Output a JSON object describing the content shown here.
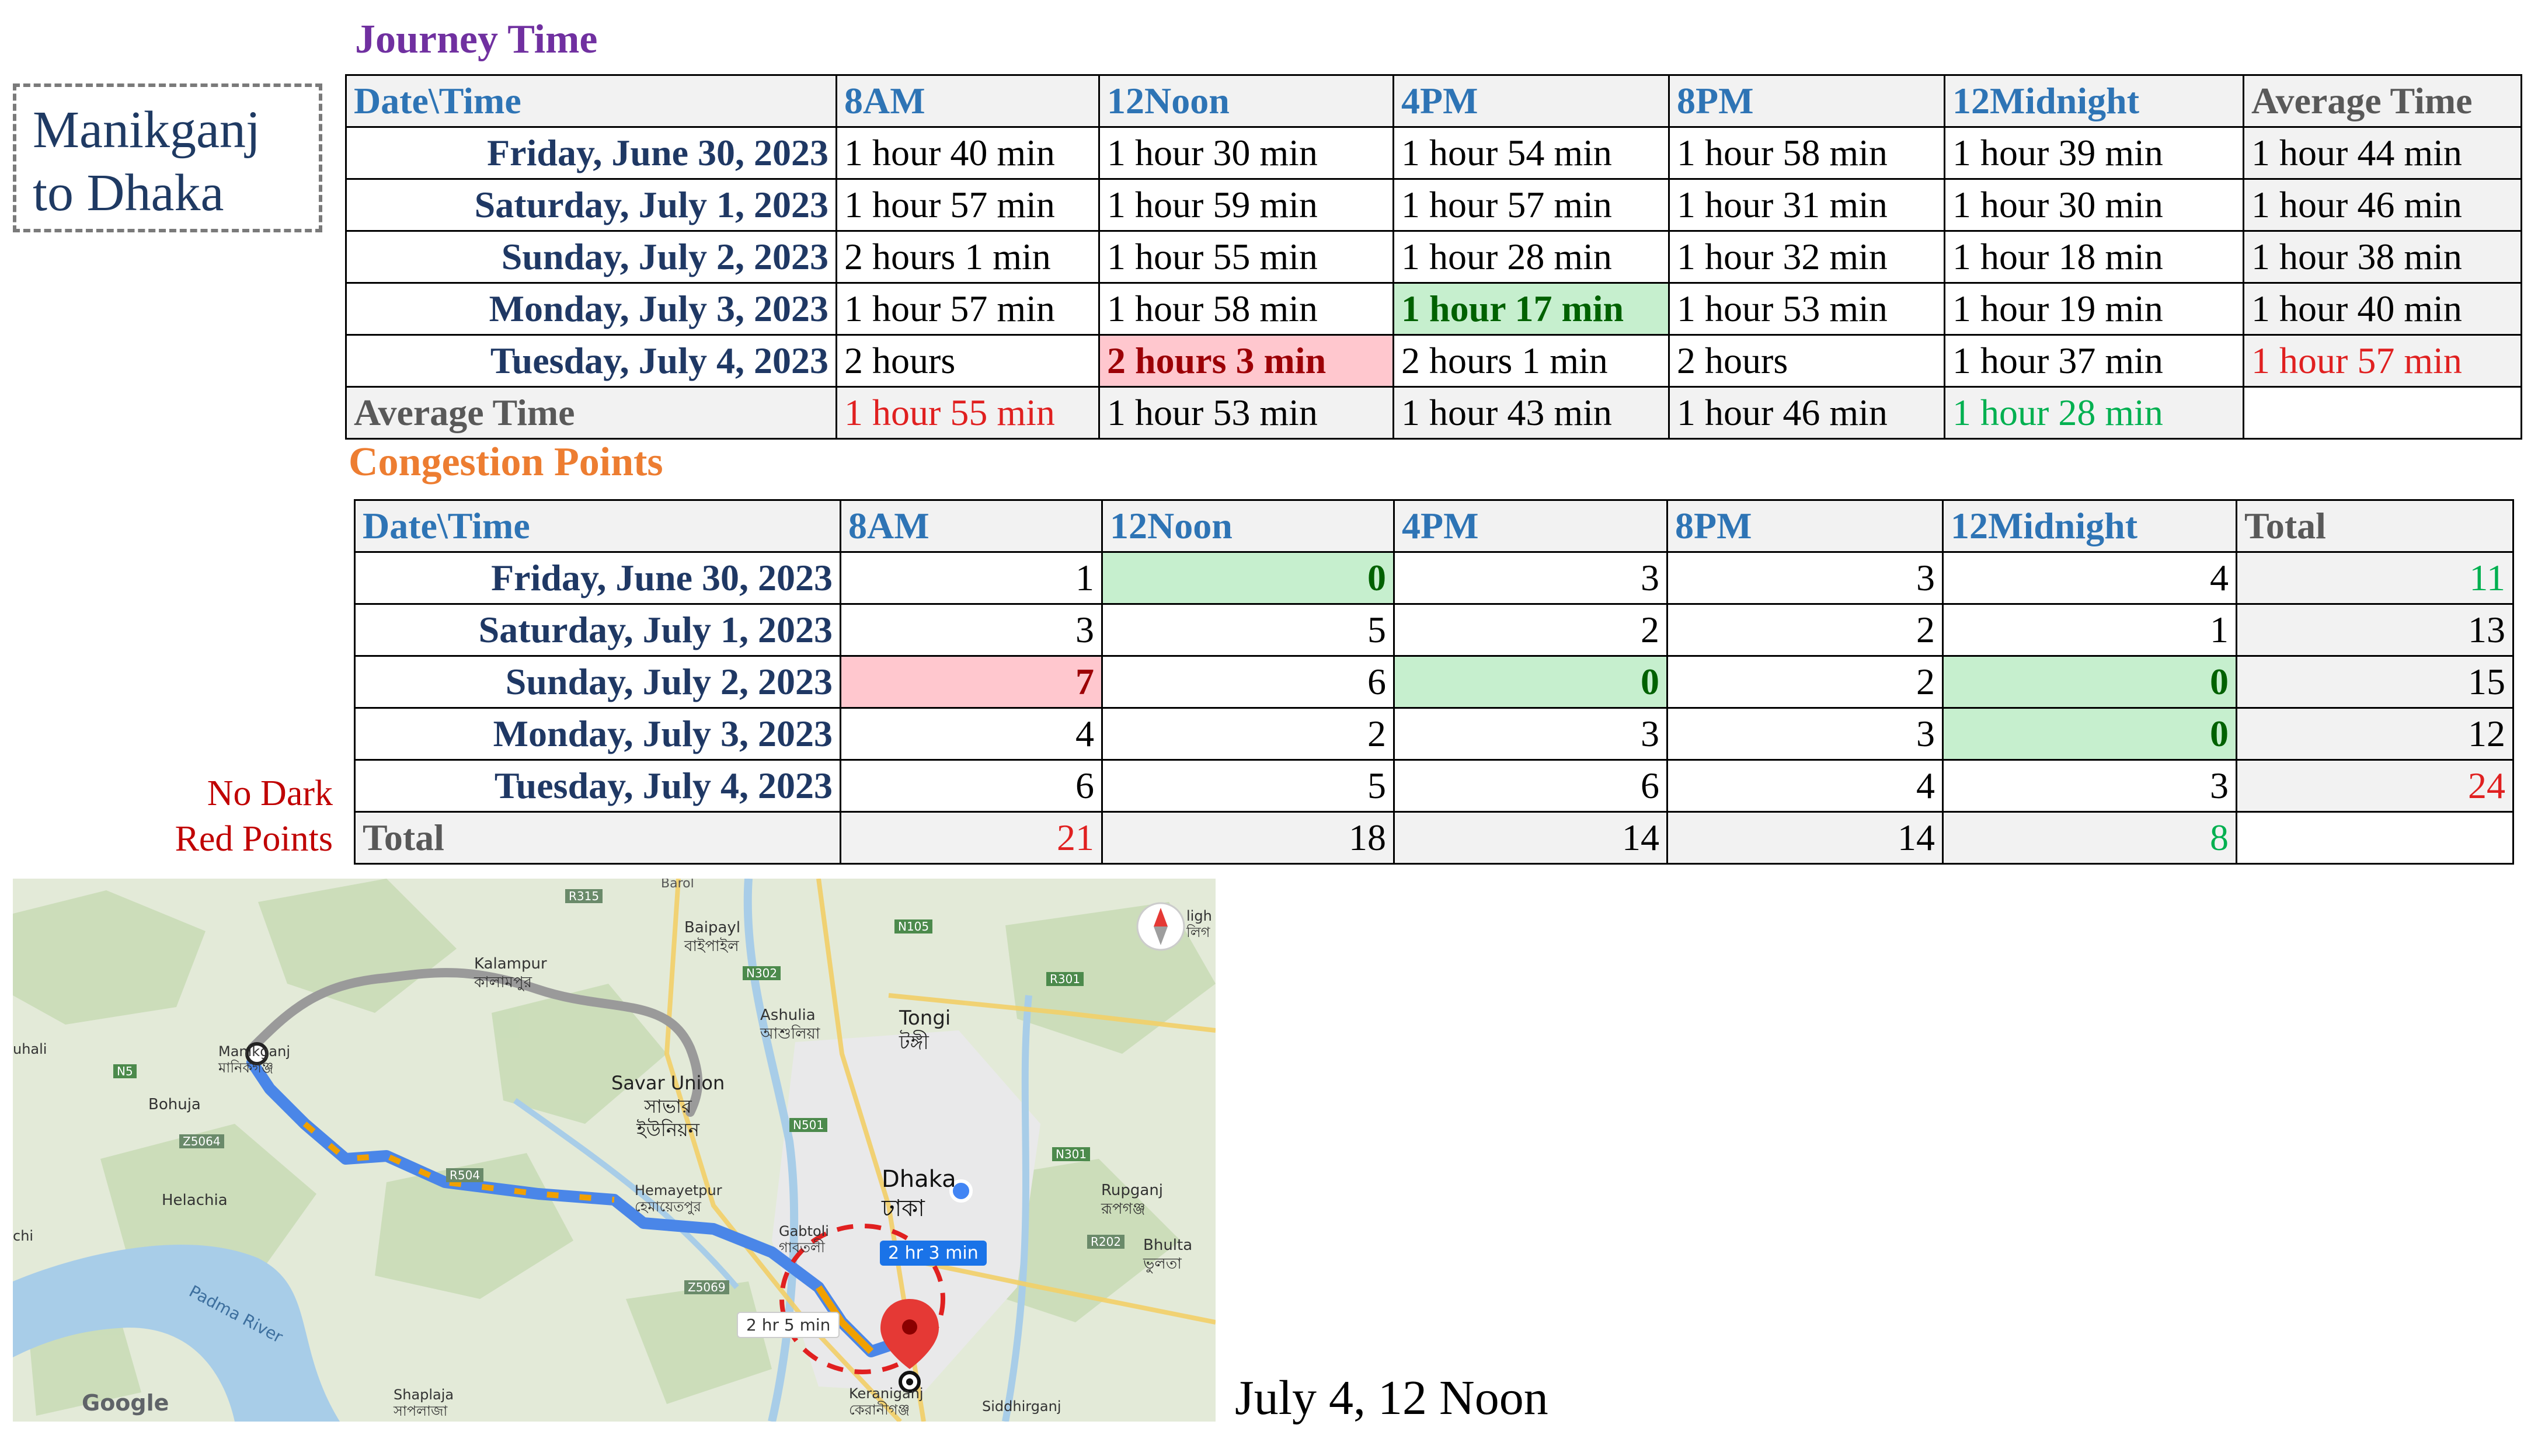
{
  "route_label": [
    "Manikganj",
    "to Dhaka"
  ],
  "journey": {
    "title": "Journey Time",
    "headers": [
      "Date\\Time",
      "8AM",
      "12Noon",
      "4PM",
      "8PM",
      "12Midnight",
      "Average Time"
    ],
    "rows": [
      {
        "date": "Friday, June 30, 2023",
        "cells": [
          "1 hour 40 min",
          "1 hour 30 min",
          "1 hour 54 min",
          "1 hour 58 min",
          "1 hour 39 min"
        ],
        "avg": "1 hour 44 min"
      },
      {
        "date": "Saturday, July 1, 2023",
        "cells": [
          "1 hour 57 min",
          "1 hour 59 min",
          "1 hour 57 min",
          "1 hour 31 min",
          "1 hour 30 min"
        ],
        "avg": "1 hour 46 min"
      },
      {
        "date": "Sunday, July 2, 2023",
        "cells": [
          "2 hours 1 min",
          "1 hour 55 min",
          "1 hour 28 min",
          "1 hour 32 min",
          "1 hour 18 min"
        ],
        "avg": "1 hour 38 min"
      },
      {
        "date": "Monday, July 3, 2023",
        "cells": [
          "1 hour 57 min",
          "1 hour 58 min",
          "1 hour 17 min",
          "1 hour 53 min",
          "1 hour 19 min"
        ],
        "avg": "1 hour 40 min"
      },
      {
        "date": "Tuesday, July 4, 2023",
        "cells": [
          "2 hours",
          "2 hours 3 min",
          "2 hours 1 min",
          "2 hours",
          "1 hour 37 min"
        ],
        "avg": "1 hour 57 min"
      }
    ],
    "average_label": "Average Time",
    "averages": [
      "1 hour 55 min",
      "1 hour 53 min",
      "1 hour 43 min",
      "1 hour 46 min",
      "1 hour 28 min"
    ]
  },
  "congestion": {
    "title": "Congestion Points",
    "headers": [
      "Date\\Time",
      "8AM",
      "12Noon",
      "4PM",
      "8PM",
      "12Midnight",
      "Total"
    ],
    "rows": [
      {
        "date": "Friday, June 30, 2023",
        "cells": [
          "1",
          "0",
          "3",
          "3",
          "4"
        ],
        "total": "11"
      },
      {
        "date": "Saturday, July 1, 2023",
        "cells": [
          "3",
          "5",
          "2",
          "2",
          "1"
        ],
        "total": "13"
      },
      {
        "date": "Sunday, July 2, 2023",
        "cells": [
          "7",
          "6",
          "0",
          "2",
          "0"
        ],
        "total": "15"
      },
      {
        "date": "Monday, July 3, 2023",
        "cells": [
          "4",
          "2",
          "3",
          "3",
          "0"
        ],
        "total": "12"
      },
      {
        "date": "Tuesday, July 4, 2023",
        "cells": [
          "6",
          "5",
          "6",
          "4",
          "3"
        ],
        "total": "24"
      }
    ],
    "total_label": "Total",
    "totals": [
      "21",
      "18",
      "14",
      "14",
      "8"
    ]
  },
  "note": [
    "No Dark",
    "Red Points"
  ],
  "map": {
    "labels": {
      "barol": "Barol",
      "r315": "R315",
      "baipayl": "Baipayl",
      "baipayl_bn": "বাইপাইল",
      "n105": "N105",
      "n302": "N302",
      "r301": "R301",
      "kalampur": "Kalampur",
      "kalampur_bn": "কালামপুর",
      "ashulia": "Ashulia",
      "ashulia_bn": "আশুলিয়া",
      "tongi": "Tongi",
      "tongi_bn": "টঙ্গী",
      "uhali": "uhali",
      "manikganj": "Manikganj",
      "manikganj_bn": "মানিকগঞ্জ",
      "n5": "N5",
      "savar": "Savar Union",
      "savar_bn1": "সাভার",
      "savar_bn2": "ইউনিয়ন",
      "bohuja": "Bohuja",
      "n501": "N501",
      "z5064": "Z5064",
      "r504": "R504",
      "dhaka": "Dhaka",
      "dhaka_bn": "ঢাকা",
      "n301": "N301",
      "rupganj": "Rupganj",
      "rupganj_bn": "রূপগঞ্জ",
      "helachia": "Helachia",
      "hemayetpur": "Hemayetpur",
      "hemayetpur_bn": "হেমায়েতপুর",
      "gabtoli": "Gabtoli",
      "gabtoli_bn": "গাবতলী",
      "chi": "chi",
      "r202": "R202",
      "bhulta": "Bhulta",
      "bhulta_bn": "ভুলতা",
      "padma": "Padma River",
      "z5069": "Z5069",
      "keraniganj": "Keraniganj",
      "keraniganj_bn": "কেরানীগঞ্জ",
      "shaplaja": "Shaplaja",
      "shaplaja_bn": "সাপলাজা",
      "siddhirganj": "Siddhirganj",
      "ligh": "ligh",
      "ligh_bn": "লিগ",
      "google": "Google"
    },
    "callout_main": "2 hr 3 min",
    "callout_alt": "2 hr 5 min",
    "compass_icon": "compass-icon",
    "destination_icon": "map-pin-icon",
    "colors": {
      "land": "#dfe8d6",
      "water": "#9fc6e6",
      "route": "#4a86e8",
      "traffic": "#f0a000",
      "alt_route": "#9a9a9a",
      "pin": "#e53935"
    }
  },
  "caption": "July 4, 12 Noon"
}
